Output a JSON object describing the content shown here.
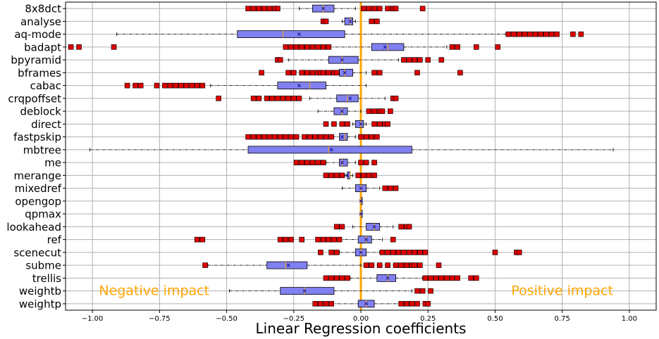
{
  "chart_data": {
    "type": "boxplot",
    "title": "",
    "xlabel": "Linear Regression coefficients",
    "ylabel": "",
    "xlim": [
      -1.1,
      1.1
    ],
    "xticks": [
      -1.0,
      -0.75,
      -0.5,
      -0.25,
      0.0,
      0.25,
      0.5,
      0.75,
      1.0
    ],
    "xtick_labels": [
      "−1.00",
      "−0.75",
      "−0.50",
      "−0.25",
      "0.00",
      "0.25",
      "0.50",
      "0.75",
      "1.00"
    ],
    "grid": true,
    "reference_line": {
      "x": 0.0,
      "color": "#FFA500"
    },
    "annotations": [
      {
        "text": "Negative impact",
        "x": -0.77,
        "row": "weightb",
        "color": "#FFA500"
      },
      {
        "text": "Positive impact",
        "x": 0.75,
        "row": "weightb",
        "color": "#FFA500"
      }
    ],
    "colors": {
      "box": "#8080F0",
      "outlier": "#DD0000",
      "median": "#FFA500",
      "mean": "#1A1A99",
      "zero_line": "#FFA500"
    },
    "categories": [
      "8x8dct",
      "analyse",
      "aq-mode",
      "badapt",
      "bpyramid",
      "bframes",
      "cabac",
      "crqpoffset",
      "deblock",
      "direct",
      "fastpskip",
      "mbtree",
      "me",
      "merange",
      "mixedref",
      "opengop",
      "qpmax",
      "lookahead",
      "ref",
      "scenecut",
      "subme",
      "trellis",
      "weightb",
      "weightp"
    ],
    "boxes": [
      {
        "label": "8x8dct",
        "whislo": -0.23,
        "q1": -0.18,
        "med": -0.14,
        "q3": -0.1,
        "whishi": -0.02,
        "mean": -0.14,
        "fliers": [
          -0.42,
          -0.4,
          -0.38,
          -0.36,
          -0.34,
          -0.32,
          -0.31,
          0.01,
          0.03,
          0.05,
          0.07,
          0.1,
          0.12,
          0.13,
          0.23
        ]
      },
      {
        "label": "analyse",
        "whislo": -0.07,
        "q1": -0.06,
        "med": -0.04,
        "q3": -0.03,
        "whishi": -0.02,
        "mean": -0.04,
        "fliers": [
          -0.14,
          -0.13,
          0.04,
          0.06
        ]
      },
      {
        "label": "aq-mode",
        "whislo": -0.91,
        "q1": -0.46,
        "med": -0.29,
        "q3": -0.06,
        "whishi": 0.54,
        "mean": -0.23,
        "fliers": [
          0.55,
          0.57,
          0.59,
          0.61,
          0.63,
          0.65,
          0.67,
          0.69,
          0.71,
          0.73,
          0.79,
          0.82
        ]
      },
      {
        "label": "badapt",
        "whislo": -0.26,
        "q1": 0.04,
        "med": 0.1,
        "q3": 0.16,
        "whishi": 0.32,
        "mean": 0.09,
        "fliers": [
          -1.08,
          -1.05,
          -0.92,
          -0.28,
          -0.26,
          -0.24,
          -0.22,
          -0.2,
          -0.18,
          -0.16,
          -0.14,
          -0.12,
          0.34,
          0.36,
          0.43,
          0.51
        ]
      },
      {
        "label": "bpyramid",
        "whislo": -0.27,
        "q1": -0.12,
        "med": -0.07,
        "q3": -0.01,
        "whishi": 0.14,
        "mean": -0.07,
        "fliers": [
          -0.31,
          -0.3,
          0.16,
          0.18,
          0.2,
          0.22,
          0.25,
          0.3
        ]
      },
      {
        "label": "bframes",
        "whislo": -0.15,
        "q1": -0.08,
        "med": -0.06,
        "q3": -0.03,
        "whishi": 0.02,
        "mean": -0.06,
        "fliers": [
          -0.37,
          -0.27,
          -0.25,
          -0.22,
          -0.2,
          -0.18,
          -0.16,
          -0.15,
          -0.14,
          -0.12,
          -0.1,
          -0.09,
          0.05,
          0.07,
          0.21,
          0.37
        ]
      },
      {
        "label": "cabac",
        "whislo": -0.56,
        "q1": -0.31,
        "med": -0.19,
        "q3": -0.13,
        "whishi": 0.02,
        "mean": -0.23,
        "fliers": [
          -0.87,
          -0.84,
          -0.82,
          -0.76,
          -0.73,
          -0.71,
          -0.69,
          -0.67,
          -0.65,
          -0.63,
          -0.61,
          -0.59
        ]
      },
      {
        "label": "crqpoffset",
        "whislo": -0.19,
        "q1": -0.09,
        "med": -0.05,
        "q3": -0.01,
        "whishi": 0.09,
        "mean": -0.04,
        "fliers": [
          -0.53,
          -0.4,
          -0.38,
          -0.35,
          -0.33,
          -0.31,
          -0.29,
          -0.27,
          -0.25,
          -0.23,
          0.12,
          0.13
        ]
      },
      {
        "label": "deblock",
        "whislo": -0.16,
        "q1": -0.1,
        "med": -0.07,
        "q3": -0.05,
        "whishi": 0.0,
        "mean": -0.07,
        "fliers": [
          0.03,
          0.05,
          0.07,
          0.08,
          0.11
        ]
      },
      {
        "label": "direct",
        "whislo": -0.03,
        "q1": -0.02,
        "med": 0.0,
        "q3": 0.01,
        "whishi": 0.02,
        "mean": 0.0,
        "fliers": [
          -0.13,
          -0.1,
          -0.07,
          -0.05,
          0.05,
          0.07,
          0.09,
          0.1
        ]
      },
      {
        "label": "fastpskip",
        "whislo": -0.2,
        "q1": -0.08,
        "med": -0.06,
        "q3": -0.05,
        "whishi": -0.02,
        "mean": -0.07,
        "fliers": [
          -0.42,
          -0.4,
          -0.38,
          -0.36,
          -0.34,
          -0.32,
          -0.3,
          -0.28,
          -0.26,
          -0.24,
          -0.21,
          -0.19,
          -0.17,
          -0.15,
          -0.13,
          -0.11,
          0.0,
          0.02,
          0.04,
          0.06
        ]
      },
      {
        "label": "mbtree",
        "whislo": -1.01,
        "q1": -0.42,
        "med": -0.12,
        "q3": 0.19,
        "whishi": 0.94,
        "mean": -0.11,
        "fliers": []
      },
      {
        "label": "me",
        "whislo": -0.13,
        "q1": -0.08,
        "med": -0.07,
        "q3": -0.05,
        "whishi": -0.02,
        "mean": -0.07,
        "fliers": [
          -0.24,
          -0.22,
          -0.2,
          -0.18,
          -0.16,
          -0.14,
          0.0,
          0.02,
          0.05
        ]
      },
      {
        "label": "merange",
        "whislo": -0.06,
        "q1": -0.05,
        "med": -0.04,
        "q3": -0.04,
        "whishi": -0.03,
        "mean": -0.05,
        "fliers": [
          -0.13,
          -0.11,
          -0.09,
          -0.07,
          -0.01,
          0.01,
          0.03,
          0.05
        ]
      },
      {
        "label": "mixedref",
        "whislo": -0.07,
        "q1": -0.02,
        "med": 0.0,
        "q3": 0.02,
        "whishi": 0.07,
        "mean": 0.0,
        "fliers": [
          0.09,
          0.11,
          0.13
        ]
      },
      {
        "label": "opengop",
        "whislo": 0.0,
        "q1": 0.0,
        "med": 0.0,
        "q3": 0.0,
        "whishi": 0.0,
        "mean": 0.0,
        "fliers": []
      },
      {
        "label": "qpmax",
        "whislo": 0.0,
        "q1": 0.0,
        "med": 0.0,
        "q3": 0.0,
        "whishi": 0.0,
        "mean": 0.0,
        "fliers": []
      },
      {
        "label": "lookahead",
        "whislo": -0.03,
        "q1": 0.02,
        "med": 0.05,
        "q3": 0.07,
        "whishi": 0.12,
        "mean": 0.05,
        "fliers": [
          -0.09,
          -0.07,
          0.15,
          0.17,
          0.18
        ]
      },
      {
        "label": "ref",
        "whislo": -0.13,
        "q1": -0.01,
        "med": 0.02,
        "q3": 0.04,
        "whishi": 0.08,
        "mean": 0.02,
        "fliers": [
          -0.61,
          -0.59,
          -0.3,
          -0.28,
          -0.26,
          -0.22,
          -0.16,
          -0.14,
          -0.12,
          -0.1,
          -0.08,
          0.12
        ]
      },
      {
        "label": "scenecut",
        "whislo": -0.08,
        "q1": -0.02,
        "med": 0.0,
        "q3": 0.02,
        "whishi": 0.07,
        "mean": 0.0,
        "fliers": [
          -0.15,
          -0.11,
          -0.09,
          0.08,
          0.1,
          0.12,
          0.14,
          0.16,
          0.18,
          0.2,
          0.22,
          0.24,
          0.5,
          0.58,
          0.59
        ]
      },
      {
        "label": "subme",
        "whislo": -0.57,
        "q1": -0.35,
        "med": -0.28,
        "q3": -0.2,
        "whishi": 0.0,
        "mean": -0.27,
        "fliers": [
          -0.58,
          0.02,
          0.04,
          0.07,
          0.1,
          0.13,
          0.15,
          0.17,
          0.19,
          0.2,
          0.22,
          0.29
        ]
      },
      {
        "label": "trellis",
        "whislo": -0.04,
        "q1": 0.06,
        "med": 0.1,
        "q3": 0.13,
        "whishi": 0.23,
        "mean": 0.1,
        "fliers": [
          -0.13,
          -0.11,
          -0.09,
          -0.07,
          -0.05,
          0.24,
          0.26,
          0.28,
          0.3,
          0.32,
          0.34,
          0.36,
          0.41,
          0.43
        ]
      },
      {
        "label": "weightb",
        "whislo": -0.49,
        "q1": -0.3,
        "med": -0.21,
        "q3": -0.1,
        "whishi": 0.19,
        "mean": -0.21,
        "fliers": [
          0.21,
          0.23,
          0.26
        ]
      },
      {
        "label": "weightp",
        "whislo": -0.11,
        "q1": -0.01,
        "med": 0.02,
        "q3": 0.05,
        "whishi": 0.15,
        "mean": 0.02,
        "fliers": [
          -0.17,
          -0.15,
          -0.13,
          -0.11,
          0.15,
          0.17,
          0.19,
          0.21,
          0.24,
          0.25
        ]
      }
    ]
  }
}
